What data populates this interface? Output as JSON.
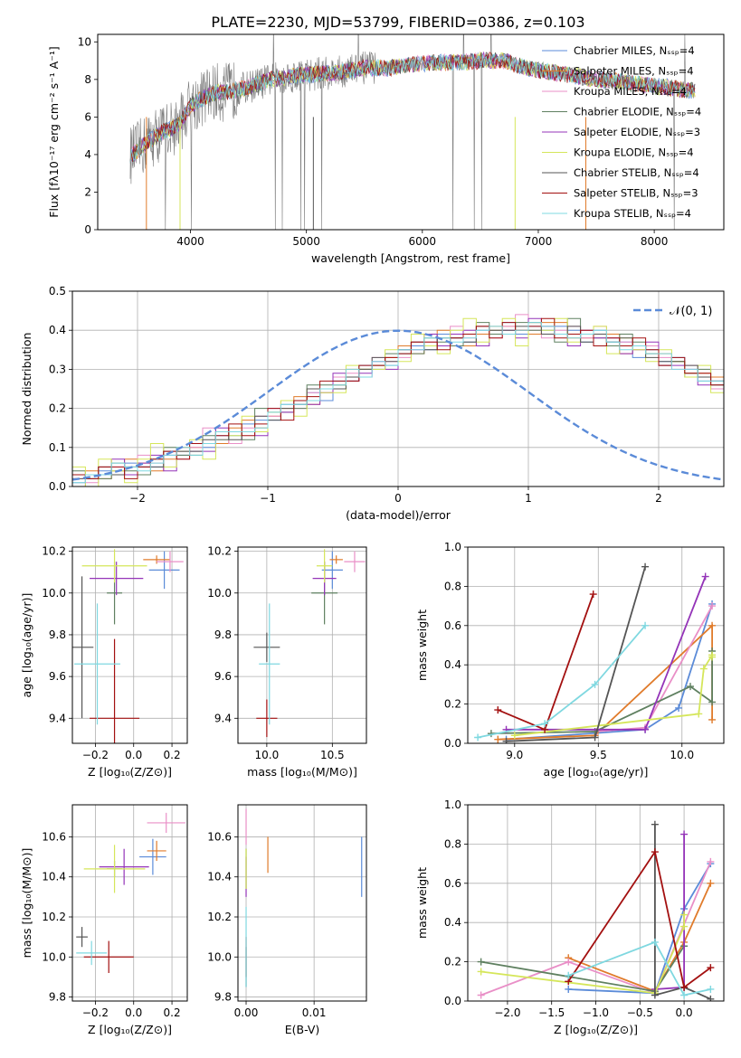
{
  "title": "PLATE=2230, MJD=53799, FIBERID=0386, z=0.103",
  "colors": {
    "c0": "#5b8bd8",
    "c1": "#e07b2b",
    "c2": "#e98fc7",
    "c3": "#5f8060",
    "c4": "#9434b8",
    "c5": "#d5e65a",
    "c6": "#555555",
    "c7": "#a31010",
    "c8": "#7fd8e0"
  },
  "chart_data": [
    {
      "id": "spectrum",
      "type": "line",
      "xlabel": "wavelength [Angstrom, rest frame]",
      "ylabel": "Flux [fλ10⁻¹⁷ erg cm⁻² s⁻¹ A⁻¹]",
      "xlim": [
        3200,
        8600
      ],
      "ylim": [
        0,
        10.4
      ],
      "xticks": [
        4000,
        5000,
        6000,
        7000,
        8000
      ],
      "yticks": [
        0,
        2,
        4,
        6,
        8,
        10
      ],
      "grid": false,
      "legend_position": "right",
      "legend": [
        "Chabrier MILES, Nₛₛₚ=4",
        "Salpeter MILES, Nₛₛₚ=4",
        "Kroupa MILES, Nₛₛₚ=4",
        "Chabrier ELODIE, Nₛₛₚ=4",
        "Salpeter ELODIE, Nₛₛₚ=3",
        "Kroupa ELODIE, Nₛₛₚ=4",
        "Chabrier STELIB, Nₛₛₚ=4",
        "Salpeter STELIB, Nₛₛₚ=3",
        "Kroupa STELIB, Nₛₛₚ=4"
      ],
      "continuum": {
        "x": [
          3500,
          3700,
          3900,
          4000,
          4100,
          4200,
          4300,
          4500,
          4700,
          4900,
          5100,
          5300,
          5500,
          5700,
          5900,
          6100,
          6300,
          6500,
          6700,
          6900,
          7100,
          7300,
          7500,
          7700,
          7900,
          8100,
          8300
        ],
        "y": [
          4.0,
          5.0,
          5.6,
          6.6,
          7.0,
          7.3,
          7.3,
          7.6,
          8.0,
          8.2,
          8.3,
          8.4,
          8.6,
          8.6,
          8.8,
          8.9,
          8.9,
          9.0,
          9.0,
          8.6,
          8.4,
          8.2,
          8.0,
          7.9,
          7.7,
          7.6,
          7.4
        ]
      }
    },
    {
      "id": "residuals",
      "type": "line",
      "xlabel": "(data-model)/error",
      "ylabel": "Normed distribution",
      "xlim": [
        -2.5,
        2.5
      ],
      "ylim": [
        0,
        0.5
      ],
      "xticks": [
        -2,
        -1,
        0,
        1,
        2
      ],
      "xticklabels": [
        "−2",
        "−1",
        "0",
        "1",
        "2"
      ],
      "yticks": [
        0.0,
        0.1,
        0.2,
        0.3,
        0.4,
        0.5
      ],
      "yticklabels": [
        "0.0",
        "0.1",
        "0.2",
        "0.3",
        "0.4",
        "0.5"
      ],
      "grid": true,
      "legend_position": "top-right",
      "normal_label": "𝒩(0, 1)",
      "bin_width": 0.1,
      "reference": [
        0.02,
        0.02,
        0.03,
        0.04,
        0.04,
        0.05,
        0.06,
        0.07,
        0.08,
        0.09,
        0.11,
        0.12,
        0.13,
        0.14,
        0.16,
        0.18,
        0.19,
        0.21,
        0.23,
        0.24,
        0.26,
        0.28,
        0.29,
        0.31,
        0.32,
        0.34,
        0.35,
        0.36,
        0.37,
        0.38,
        0.38,
        0.39,
        0.39,
        0.4,
        0.4,
        0.4,
        0.4,
        0.39,
        0.39,
        0.38,
        0.38,
        0.37,
        0.36,
        0.35,
        0.34,
        0.32,
        0.31,
        0.29,
        0.28,
        0.26,
        0.24
      ],
      "offsets": [
        [
          -0.01,
          0.0,
          0.01,
          -0.01,
          0.02,
          0.0,
          -0.01,
          0.01,
          0.0,
          0.02,
          -0.01,
          0.01,
          0.0,
          0.02,
          0.01,
          -0.01,
          0.02,
          0.0,
          0.01,
          -0.02,
          0.01,
          0.0,
          0.02,
          -0.01
        ],
        [
          0.01,
          0.02,
          -0.01,
          0.0,
          0.03,
          0.01,
          -0.02,
          0.0,
          0.02,
          0.01,
          0.0,
          -0.01,
          0.02,
          0.03,
          -0.01,
          0.0,
          0.01,
          0.02,
          -0.02,
          0.01,
          0.0,
          0.02,
          0.01,
          0.0
        ],
        [
          0.0,
          -0.01,
          0.02,
          0.01,
          -0.01,
          0.03,
          0.0,
          0.02,
          -0.01,
          0.01,
          0.04,
          0.0,
          -0.02,
          0.01,
          0.02,
          0.0,
          0.03,
          -0.01,
          0.01,
          0.0,
          0.02,
          0.01,
          -0.01,
          0.02
        ],
        [
          0.02,
          0.0,
          -0.01,
          0.02,
          0.0,
          -0.02,
          0.01,
          0.03,
          0.0,
          -0.01,
          0.02,
          0.0,
          0.01,
          -0.02,
          0.04,
          0.01,
          0.0,
          -0.01,
          0.03,
          0.02,
          0.0,
          -0.01,
          0.01,
          0.0
        ],
        [
          -0.02,
          0.01,
          0.0,
          0.03,
          -0.01,
          0.01,
          0.02,
          -0.03,
          0.01,
          0.0,
          -0.02,
          0.03,
          0.01,
          0.0,
          -0.03,
          0.02,
          0.0,
          0.01,
          -0.02,
          0.0,
          0.03,
          -0.01,
          0.0,
          0.01
        ],
        [
          0.03,
          -0.02,
          0.04,
          0.0,
          -0.03,
          0.02,
          0.05,
          -0.02,
          0.01,
          0.03,
          -0.04,
          0.02,
          0.0,
          0.04,
          -0.02,
          0.01,
          0.03,
          -0.03,
          0.02,
          0.0,
          -0.02,
          0.03,
          0.01,
          -0.01
        ],
        [
          0.0,
          0.01,
          0.02,
          -0.01,
          0.01,
          0.0,
          -0.01,
          0.02,
          0.01,
          0.0,
          0.01,
          0.02,
          -0.01,
          0.0,
          0.02,
          -0.01,
          0.01,
          0.0,
          0.02,
          0.01,
          -0.01,
          0.0,
          0.01,
          0.02
        ],
        [
          0.01,
          0.0,
          0.02,
          0.01,
          -0.02,
          0.0,
          0.01,
          0.02,
          -0.01,
          0.02,
          0.0,
          0.01,
          0.03,
          -0.01,
          0.0,
          0.02,
          -0.02,
          0.01,
          0.0,
          0.03,
          0.01,
          -0.01,
          0.02,
          0.0
        ],
        [
          -0.01,
          0.01,
          0.0,
          0.02,
          0.01,
          -0.01,
          0.0,
          0.01,
          0.02,
          -0.01,
          0.0,
          0.02,
          0.01,
          0.0,
          -0.01,
          0.01,
          0.02,
          0.0,
          -0.01,
          0.01,
          0.0,
          0.02,
          -0.01,
          0.01
        ]
      ]
    },
    {
      "id": "z-age",
      "type": "scatter",
      "xlabel": "Z [log₁₀(Z/Z⊙)]",
      "ylabel": "age  [log₁₀(age/yr)]",
      "xlim": [
        -0.32,
        0.28
      ],
      "ylim": [
        9.28,
        10.22
      ],
      "xticks": [
        -0.2,
        0.0,
        0.2
      ],
      "xticklabels": [
        "−0.2",
        "0.0",
        "0.2"
      ],
      "yticks": [
        9.4,
        9.6,
        9.8,
        10.0,
        10.2
      ],
      "yticklabels": [
        "9.4",
        "9.6",
        "9.8",
        "10.0",
        "10.2"
      ],
      "grid": true,
      "points": [
        {
          "c": "c0",
          "x": 0.16,
          "xerr": 0.08,
          "y": 10.11,
          "yerr": 0.09
        },
        {
          "c": "c1",
          "x": 0.12,
          "xerr": 0.07,
          "y": 10.16,
          "yerr": 0.02
        },
        {
          "c": "c2",
          "x": 0.19,
          "xerr": 0.07,
          "y": 10.15,
          "yerr": 0.05
        },
        {
          "c": "c3",
          "x": -0.1,
          "xerr": 0.04,
          "y": 10.0,
          "yerr": 0.15
        },
        {
          "c": "c4",
          "x": -0.09,
          "xerr": 0.14,
          "y": 10.07,
          "yerr": 0.08
        },
        {
          "c": "c5",
          "x": -0.1,
          "xerr": 0.17,
          "y": 10.13,
          "yerr": 0.08
        },
        {
          "c": "c6",
          "x": -0.27,
          "xerr": 0.06,
          "y": 9.74,
          "yerr": 0.34
        },
        {
          "c": "c7",
          "x": -0.1,
          "xerr": 0.13,
          "y": 9.4,
          "yerr": 0.38
        },
        {
          "c": "c8",
          "x": -0.19,
          "xerr": 0.12,
          "y": 9.66,
          "yerr": 0.29
        }
      ]
    },
    {
      "id": "mass-age",
      "type": "scatter",
      "xlabel": "mass [log₁₀(M/M⊙)]",
      "ylabel": "",
      "xlim": [
        9.78,
        10.76
      ],
      "ylim": [
        9.28,
        10.22
      ],
      "xticks": [
        10.0,
        10.5
      ],
      "xticklabels": [
        "10.0",
        "10.5"
      ],
      "yticks": [
        9.4,
        9.6,
        9.8,
        10.0,
        10.2
      ],
      "yticklabels": [
        "9.4",
        "9.6",
        "9.8",
        "10.0",
        "10.2"
      ],
      "grid": true,
      "points": [
        {
          "c": "c0",
          "x": 10.5,
          "xerr": 0.08,
          "y": 10.11,
          "yerr": 0.09
        },
        {
          "c": "c1",
          "x": 10.53,
          "xerr": 0.05,
          "y": 10.16,
          "yerr": 0.02
        },
        {
          "c": "c2",
          "x": 10.67,
          "xerr": 0.08,
          "y": 10.15,
          "yerr": 0.05
        },
        {
          "c": "c3",
          "x": 10.44,
          "xerr": 0.1,
          "y": 10.0,
          "yerr": 0.15
        },
        {
          "c": "c4",
          "x": 10.44,
          "xerr": 0.09,
          "y": 10.07,
          "yerr": 0.08
        },
        {
          "c": "c5",
          "x": 10.44,
          "xerr": 0.06,
          "y": 10.13,
          "yerr": 0.08
        },
        {
          "c": "c6",
          "x": 10.0,
          "xerr": 0.1,
          "y": 9.74,
          "yerr": 0.07
        },
        {
          "c": "c7",
          "x": 10.0,
          "xerr": 0.08,
          "y": 9.4,
          "yerr": 0.09
        },
        {
          "c": "c8",
          "x": 10.02,
          "xerr": 0.08,
          "y": 9.66,
          "yerr": 0.29
        }
      ]
    },
    {
      "id": "age-weight",
      "type": "line",
      "xlabel": "age  [log₁₀(age/yr)]",
      "ylabel": "mass weight",
      "xlim": [
        8.72,
        10.25
      ],
      "ylim": [
        0,
        1
      ],
      "xticks": [
        9.0,
        9.5,
        10.0
      ],
      "xticklabels": [
        "9.0",
        "9.5",
        "10.0"
      ],
      "yticks": [
        0.0,
        0.2,
        0.4,
        0.6,
        0.8,
        1.0
      ],
      "yticklabels": [
        "0.0",
        "0.2",
        "0.4",
        "0.6",
        "0.8",
        "1.0"
      ],
      "grid": true,
      "series": [
        {
          "c": "c0",
          "x": [
            8.95,
            9.78,
            9.98,
            10.18
          ],
          "y": [
            0.02,
            0.07,
            0.18,
            0.71
          ]
        },
        {
          "c": "c1",
          "x": [
            8.9,
            9.48,
            10.18,
            10.18
          ],
          "y": [
            0.02,
            0.04,
            0.6,
            0.12
          ]
        },
        {
          "c": "c2",
          "x": [
            9.49,
            9.78,
            10.18
          ],
          "y": [
            0.06,
            0.08,
            0.7
          ]
        },
        {
          "c": "c3",
          "x": [
            8.86,
            9.48,
            10.05,
            10.18,
            10.18
          ],
          "y": [
            0.05,
            0.06,
            0.29,
            0.21,
            0.47
          ]
        },
        {
          "c": "c4",
          "x": [
            8.95,
            9.78,
            10.14
          ],
          "y": [
            0.07,
            0.07,
            0.85
          ]
        },
        {
          "c": "c5",
          "x": [
            9.0,
            10.1,
            10.13,
            10.18,
            10.18
          ],
          "y": [
            0.04,
            0.15,
            0.38,
            0.45,
            0.44
          ]
        },
        {
          "c": "c6",
          "x": [
            8.95,
            9.48,
            9.78
          ],
          "y": [
            0.01,
            0.03,
            0.9
          ]
        },
        {
          "c": "c7",
          "x": [
            8.9,
            9.18,
            9.47
          ],
          "y": [
            0.17,
            0.07,
            0.76
          ]
        },
        {
          "c": "c8",
          "x": [
            8.78,
            9.18,
            9.48,
            9.78
          ],
          "y": [
            0.03,
            0.1,
            0.3,
            0.6
          ]
        }
      ]
    },
    {
      "id": "z-mass",
      "type": "scatter",
      "xlabel": "Z [log₁₀(Z/Z⊙)]",
      "ylabel": "mass [log₁₀(M/M⊙)]",
      "xlim": [
        -0.32,
        0.28
      ],
      "ylim": [
        9.78,
        10.76
      ],
      "xticks": [
        -0.2,
        0.0,
        0.2
      ],
      "xticklabels": [
        "−0.2",
        "0.0",
        "0.2"
      ],
      "yticks": [
        9.8,
        10.0,
        10.2,
        10.4,
        10.6
      ],
      "yticklabels": [
        "9.8",
        "10.0",
        "10.2",
        "10.4",
        "10.6"
      ],
      "grid": true,
      "points": [
        {
          "c": "c0",
          "x": 0.1,
          "xerr": 0.07,
          "y": 10.5,
          "yerr": 0.09
        },
        {
          "c": "c1",
          "x": 0.12,
          "xerr": 0.05,
          "y": 10.53,
          "yerr": 0.05
        },
        {
          "c": "c2",
          "x": 0.17,
          "xerr": 0.1,
          "y": 10.67,
          "yerr": 0.05
        },
        {
          "c": "c3",
          "x": -0.1,
          "xerr": 0.04,
          "y": 10.44,
          "yerr": 0.04
        },
        {
          "c": "c4",
          "x": -0.05,
          "xerr": 0.13,
          "y": 10.45,
          "yerr": 0.09
        },
        {
          "c": "c5",
          "x": -0.1,
          "xerr": 0.16,
          "y": 10.44,
          "yerr": 0.12
        },
        {
          "c": "c6",
          "x": -0.27,
          "xerr": 0.03,
          "y": 10.1,
          "yerr": 0.05
        },
        {
          "c": "c7",
          "x": -0.13,
          "xerr": 0.13,
          "y": 10.0,
          "yerr": 0.08
        },
        {
          "c": "c8",
          "x": -0.22,
          "xerr": 0.08,
          "y": 10.02,
          "yerr": 0.06
        }
      ]
    },
    {
      "id": "ebv-mass",
      "type": "scatter",
      "xlabel": "E(B-V)",
      "ylabel": "",
      "xlim": [
        -0.0012,
        0.0177
      ],
      "ylim": [
        9.78,
        10.76
      ],
      "xticks": [
        0.0,
        0.01
      ],
      "xticklabels": [
        "0.00",
        "0.01"
      ],
      "yticks": [
        9.8,
        10.0,
        10.2,
        10.4,
        10.6
      ],
      "yticklabels": [
        "9.8",
        "10.0",
        "10.2",
        "10.4",
        "10.6"
      ],
      "grid": true,
      "points": [
        {
          "c": "c0",
          "x": 0.017,
          "xerr": 0,
          "y": 10.45,
          "yerr": 0.15
        },
        {
          "c": "c1",
          "x": 0.0032,
          "xerr": 0,
          "y": 10.51,
          "yerr": 0.09
        },
        {
          "c": "c2",
          "x": 0.0,
          "xerr": 0,
          "y": 10.65,
          "yerr": 0.09
        },
        {
          "c": "c3",
          "x": 0.0,
          "xerr": 0,
          "y": 10.44,
          "yerr": 0.1
        },
        {
          "c": "c4",
          "x": 0.0,
          "xerr": 0,
          "y": 10.4,
          "yerr": 0.1
        },
        {
          "c": "c5",
          "x": 0.0,
          "xerr": 0,
          "y": 10.44,
          "yerr": 0.1
        },
        {
          "c": "c6",
          "x": 0.0,
          "xerr": 0,
          "y": 9.95,
          "yerr": 0.1
        },
        {
          "c": "c7",
          "x": 0.0,
          "xerr": 0,
          "y": 10.0,
          "yerr": 0.1
        },
        {
          "c": "c8",
          "x": 0.0,
          "xerr": 0,
          "y": 10.05,
          "yerr": 0.2
        }
      ]
    },
    {
      "id": "z-weight",
      "type": "line",
      "xlabel": "Z [log₁₀(Z/Z⊙)]",
      "ylabel": "mass weight",
      "xlim": [
        -2.45,
        0.45
      ],
      "ylim": [
        0,
        1
      ],
      "xticks": [
        -2.0,
        -1.5,
        -1.0,
        -0.5,
        0.0
      ],
      "xticklabels": [
        "−2.0",
        "−1.5",
        "−1.0",
        "−0.5",
        "0.0"
      ],
      "yticks": [
        0.0,
        0.2,
        0.4,
        0.6,
        0.8,
        1.0
      ],
      "yticklabels": [
        "0.0",
        "0.2",
        "0.4",
        "0.6",
        "0.8",
        "1.0"
      ],
      "grid": true,
      "series": [
        {
          "c": "c0",
          "x": [
            -1.31,
            -0.33,
            0.0,
            0.3
          ],
          "y": [
            0.06,
            0.04,
            0.47,
            0.7
          ]
        },
        {
          "c": "c1",
          "x": [
            -1.31,
            -0.33,
            0.0,
            0.3
          ],
          "y": [
            0.22,
            0.05,
            0.3,
            0.6
          ]
        },
        {
          "c": "c2",
          "x": [
            -2.3,
            -1.31,
            -0.33,
            0.3
          ],
          "y": [
            0.03,
            0.2,
            0.04,
            0.71
          ]
        },
        {
          "c": "c3",
          "x": [
            -2.3,
            -0.33,
            0.0
          ],
          "y": [
            0.2,
            0.05,
            0.28
          ]
        },
        {
          "c": "c4",
          "x": [
            -0.33,
            0.0,
            0.0
          ],
          "y": [
            0.06,
            0.07,
            0.85
          ]
        },
        {
          "c": "c5",
          "x": [
            -2.3,
            -0.33,
            0.0,
            0.0
          ],
          "y": [
            0.15,
            0.04,
            0.38,
            0.44
          ]
        },
        {
          "c": "c6",
          "x": [
            -0.33,
            -0.33,
            0.0,
            0.3
          ],
          "y": [
            0.9,
            0.03,
            0.07,
            0.01
          ]
        },
        {
          "c": "c7",
          "x": [
            -1.31,
            -0.33,
            0.0,
            0.3
          ],
          "y": [
            0.1,
            0.76,
            0.07,
            0.17
          ]
        },
        {
          "c": "c8",
          "x": [
            -1.31,
            -0.33,
            0.0,
            0.3
          ],
          "y": [
            0.13,
            0.3,
            0.03,
            0.06
          ]
        }
      ]
    }
  ]
}
